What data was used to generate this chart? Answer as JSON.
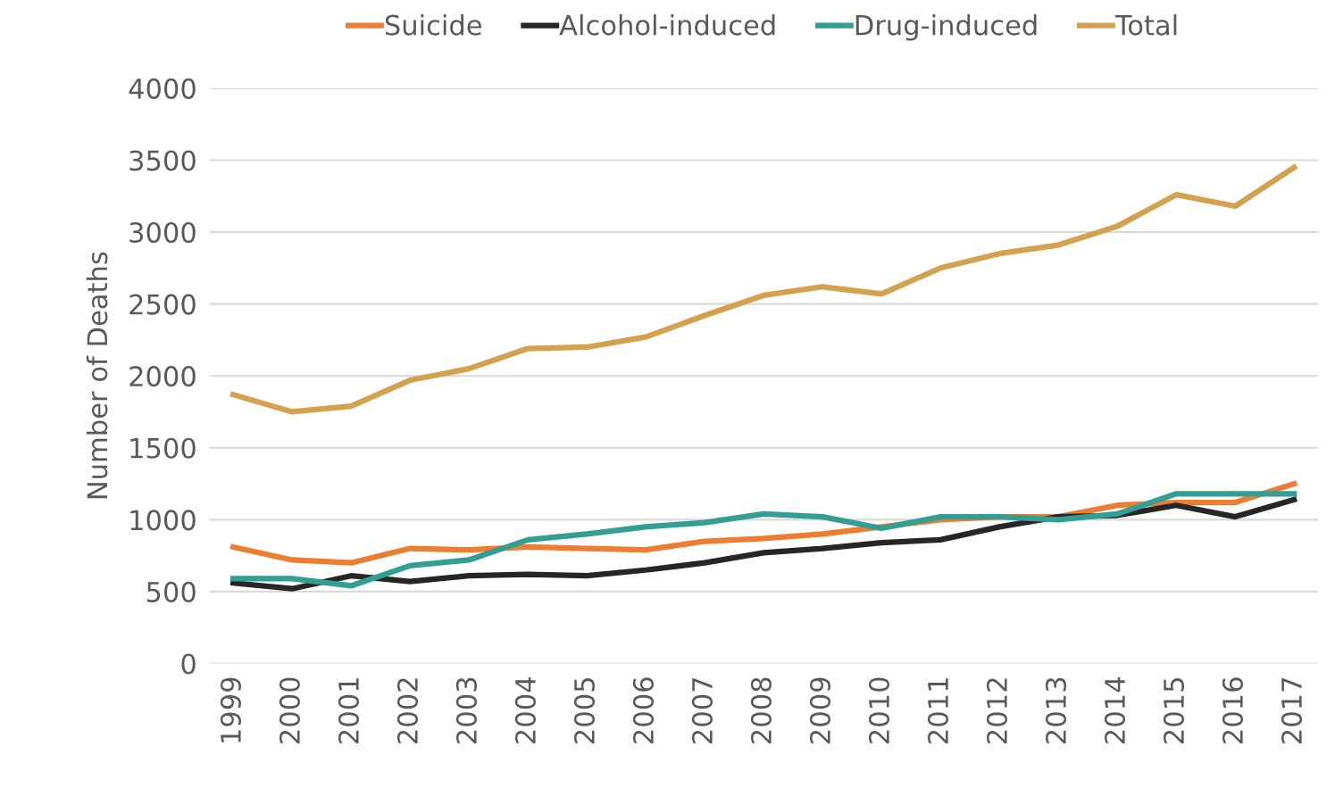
{
  "chart_data": {
    "type": "line",
    "ylabel": "Number of Deaths",
    "categories": [
      "1999",
      "2000",
      "2001",
      "2002",
      "2003",
      "2004",
      "2005",
      "2006",
      "2007",
      "2008",
      "2009",
      "2010",
      "2011",
      "2012",
      "2013",
      "2014",
      "2015",
      "2016",
      "2017"
    ],
    "series": [
      {
        "name": "Suicide",
        "color": "#ed7d31",
        "values": [
          810,
          720,
          700,
          800,
          790,
          810,
          800,
          790,
          850,
          870,
          900,
          950,
          1000,
          1020,
          1020,
          1100,
          1120,
          1120,
          1250
        ]
      },
      {
        "name": "Alcohol-induced",
        "color": "#262626",
        "values": [
          560,
          520,
          610,
          570,
          610,
          620,
          610,
          650,
          700,
          770,
          800,
          840,
          860,
          950,
          1020,
          1030,
          1100,
          1020,
          1140
        ]
      },
      {
        "name": "Drug-induced",
        "color": "#339e94",
        "values": [
          590,
          590,
          540,
          680,
          720,
          860,
          900,
          950,
          980,
          1040,
          1020,
          940,
          1020,
          1020,
          1000,
          1040,
          1180,
          1180,
          1180
        ]
      },
      {
        "name": "Total",
        "color": "#d4a24e",
        "values": [
          1870,
          1750,
          1790,
          1970,
          2050,
          2190,
          2200,
          2270,
          2420,
          2560,
          2620,
          2570,
          2750,
          2850,
          2910,
          3040,
          3260,
          3180,
          3450
        ]
      }
    ],
    "ylim": [
      0,
      4000
    ],
    "yticks": [
      0,
      500,
      1000,
      1500,
      2000,
      2500,
      3000,
      3500,
      4000
    ],
    "grid": "y",
    "legend": "top",
    "marker": "none",
    "line_style": "solid"
  }
}
